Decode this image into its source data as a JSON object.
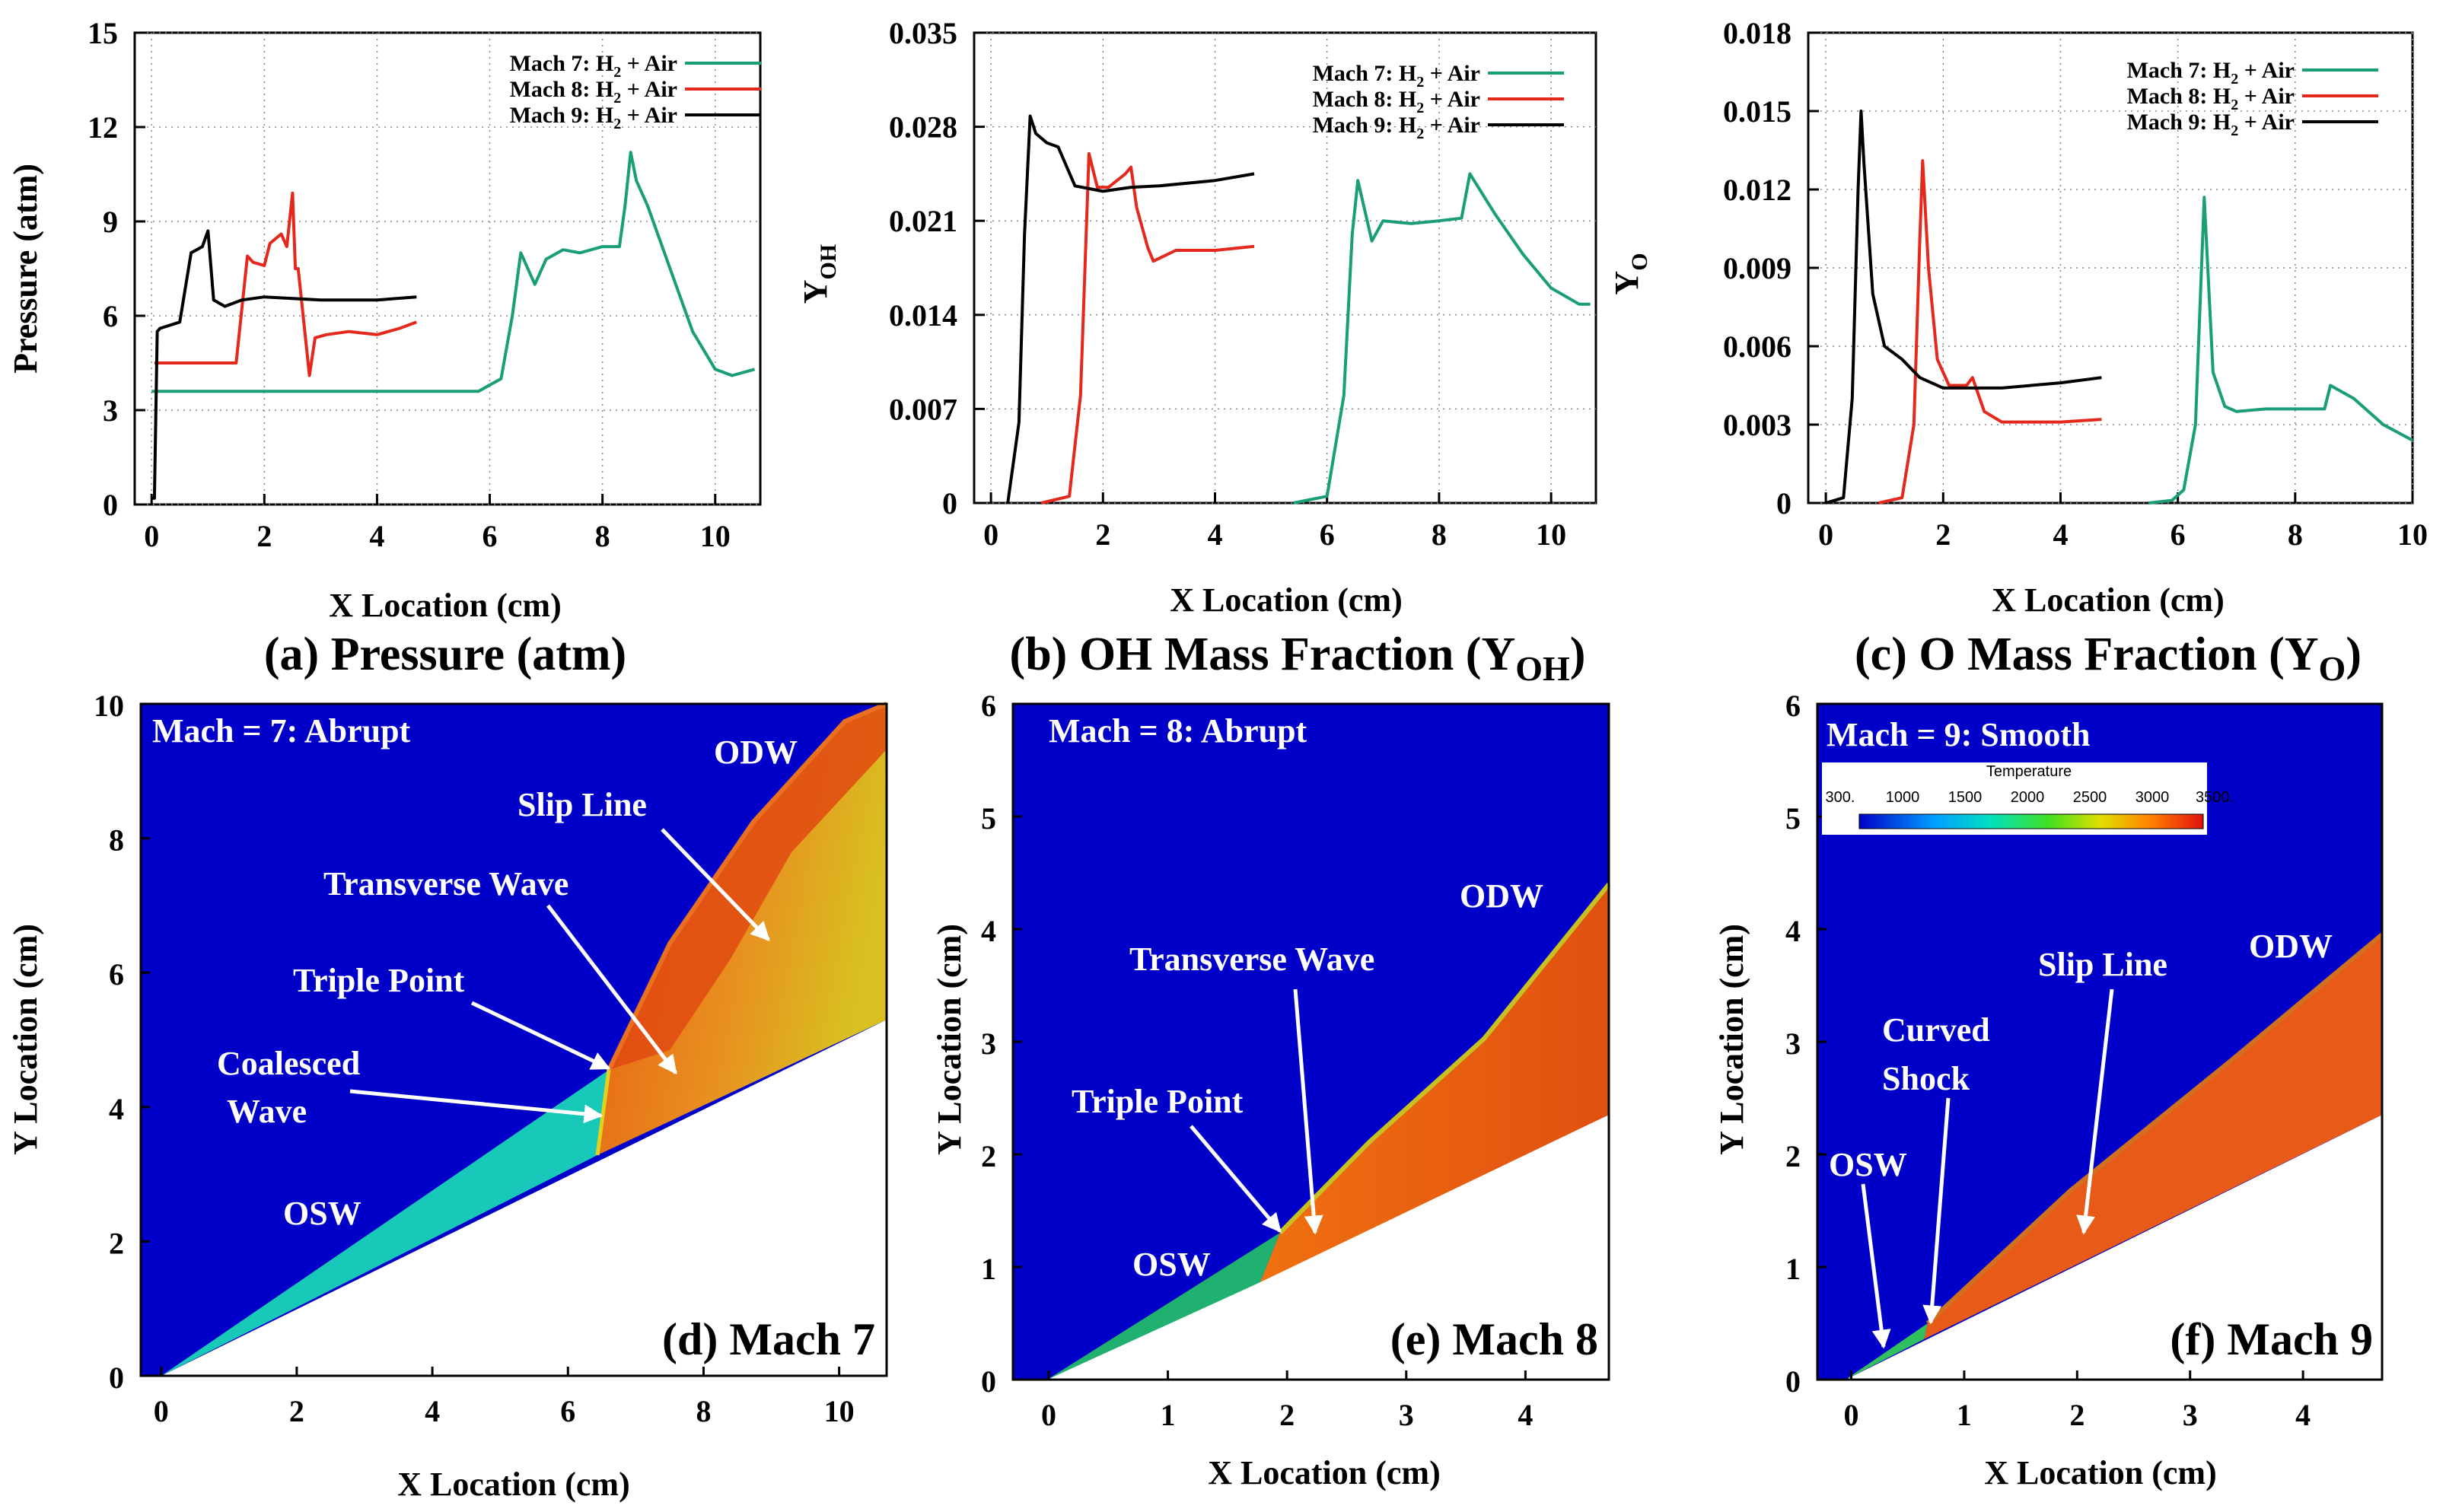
{
  "figure": {
    "line_plots": [
      {
        "id": "a",
        "caption": "(a) Pressure (atm)",
        "ylabel": "Pressure (atm)",
        "xlabel": "X Location (cm)",
        "xlim": [
          -0.3,
          10.8
        ],
        "ylim": [
          0,
          15
        ],
        "xticks": [
          0,
          2,
          4,
          6,
          8,
          10
        ],
        "yticks": [
          0,
          3,
          6,
          9,
          12,
          15
        ],
        "ytick_labels": [
          "0",
          "3",
          "6",
          "9",
          "12",
          "15"
        ]
      },
      {
        "id": "b",
        "caption": "(b) OH Mass Fraction (Y",
        "caption_sub": "OH",
        "caption_end": ")",
        "ylabel": "Y",
        "ylabel_sub": "OH",
        "xlabel": "X Location (cm)",
        "xlim": [
          -0.3,
          10.8
        ],
        "ylim": [
          0,
          0.035
        ],
        "xticks": [
          0,
          2,
          4,
          6,
          8,
          10
        ],
        "yticks": [
          0,
          0.007,
          0.014,
          0.021,
          0.028,
          0.035
        ],
        "ytick_labels": [
          "0",
          "0.007",
          "0.014",
          "0.021",
          "0.028",
          "0.035"
        ]
      },
      {
        "id": "c",
        "caption": "(c) O Mass Fraction (Y",
        "caption_sub": "O",
        "caption_end": ")",
        "ylabel": "Y",
        "ylabel_sub": "O",
        "xlabel": "X Location (cm)",
        "xlim": [
          -0.3,
          10
        ],
        "ylim": [
          0,
          0.018
        ],
        "xticks": [
          0,
          2,
          4,
          6,
          8,
          10
        ],
        "yticks": [
          0,
          0.003,
          0.006,
          0.009,
          0.012,
          0.015,
          0.018
        ],
        "ytick_labels": [
          "0",
          "0.003",
          "0.006",
          "0.009",
          "0.012",
          "0.015",
          "0.018"
        ]
      }
    ],
    "contour_panels": [
      {
        "id": "d",
        "label": "(d) Mach 7",
        "title": "Mach = 7: Abrupt",
        "xlabel": "X Location (cm)",
        "ylabel": "Y Location (cm)",
        "xlim": [
          -0.3,
          10.7
        ],
        "ylim": [
          0,
          10
        ],
        "xticks": [
          0,
          2,
          4,
          6,
          8,
          10
        ],
        "yticks": [
          0,
          2,
          4,
          6,
          8,
          10
        ],
        "annotations": [
          "ODW",
          "Slip Line",
          "Transverse Wave",
          "Triple Point",
          "Coalesced",
          "Wave",
          "OSW"
        ]
      },
      {
        "id": "e",
        "label": "(e) Mach 8",
        "title": "Mach = 8: Abrupt",
        "xlabel": "X Location (cm)",
        "ylabel": "Y Location (cm)",
        "xlim": [
          -0.3,
          4.7
        ],
        "ylim": [
          0,
          6
        ],
        "xticks": [
          0,
          1,
          2,
          3,
          4
        ],
        "yticks": [
          0,
          1,
          2,
          3,
          4,
          5,
          6
        ],
        "annotations": [
          "ODW",
          "Transverse Wave",
          "Triple Point",
          "OSW"
        ]
      },
      {
        "id": "f",
        "label": "(f) Mach 9",
        "title": "Mach = 9: Smooth",
        "xlabel": "X Location (cm)",
        "ylabel": "Y Location (cm)",
        "xlim": [
          -0.3,
          4.7
        ],
        "ylim": [
          0,
          6
        ],
        "xticks": [
          0,
          1,
          2,
          3,
          4
        ],
        "yticks": [
          0,
          1,
          2,
          3,
          4,
          5,
          6
        ],
        "annotations": [
          "ODW",
          "Slip Line",
          "Curved",
          "Shock",
          "OSW"
        ],
        "colorbar": {
          "title": "Temperature",
          "labels": [
            "300.",
            "1000",
            "1500",
            "2000",
            "2500",
            "3000",
            "3500."
          ]
        }
      }
    ]
  },
  "legend": [
    {
      "name": "Mach 7: H",
      "sub": "2",
      "rest": " + Air",
      "color": "#1a9e77"
    },
    {
      "name": "Mach 8: H",
      "sub": "2",
      "rest": " + Air",
      "color": "#e4281c"
    },
    {
      "name": "Mach 9: H",
      "sub": "2",
      "rest": " + Air",
      "color": "#000000"
    }
  ],
  "chart_data": [
    {
      "type": "line",
      "title": "(a) Pressure (atm)",
      "xlabel": "X Location (cm)",
      "ylabel": "Pressure (atm)",
      "xlim": [
        -0.3,
        10.8
      ],
      "ylim": [
        0,
        15
      ],
      "grid": true,
      "legend_position": "top-right",
      "series": [
        {
          "name": "Mach 7: H2 + Air",
          "color": "#1a9e77",
          "x": [
            0.0,
            5.8,
            6.2,
            6.4,
            6.55,
            6.8,
            7.0,
            7.3,
            7.6,
            8.0,
            8.3,
            8.4,
            8.5,
            8.6,
            8.8,
            9.2,
            9.6,
            10.0,
            10.3,
            10.7
          ],
          "y": [
            3.6,
            3.6,
            4.0,
            6.0,
            8.0,
            7.0,
            7.8,
            8.1,
            8.0,
            8.2,
            8.2,
            9.5,
            11.2,
            10.3,
            9.5,
            7.5,
            5.5,
            4.3,
            4.1,
            4.3
          ]
        },
        {
          "name": "Mach 8: H2 + Air",
          "color": "#e4281c",
          "x": [
            0.05,
            1.5,
            1.7,
            1.8,
            2.0,
            2.1,
            2.3,
            2.4,
            2.5,
            2.55,
            2.6,
            2.8,
            2.9,
            3.1,
            3.5,
            4.0,
            4.4,
            4.7
          ],
          "y": [
            4.5,
            4.5,
            7.9,
            7.7,
            7.6,
            8.3,
            8.6,
            8.2,
            9.9,
            7.5,
            7.5,
            4.1,
            5.3,
            5.4,
            5.5,
            5.4,
            5.6,
            5.8
          ]
        },
        {
          "name": "Mach 9: H2 + Air",
          "color": "#000000",
          "x": [
            0.0,
            0.05,
            0.1,
            0.15,
            0.5,
            0.7,
            0.9,
            1.0,
            1.1,
            1.3,
            1.6,
            2.0,
            3.0,
            4.0,
            4.7
          ],
          "y": [
            0.2,
            0.2,
            5.5,
            5.6,
            5.8,
            8.0,
            8.2,
            8.7,
            6.5,
            6.3,
            6.5,
            6.6,
            6.5,
            6.5,
            6.6
          ]
        }
      ]
    },
    {
      "type": "line",
      "title": "(b) OH Mass Fraction (YOH)",
      "xlabel": "X Location (cm)",
      "ylabel": "YOH",
      "xlim": [
        -0.3,
        10.8
      ],
      "ylim": [
        0,
        0.035
      ],
      "grid": true,
      "legend_position": "top-right",
      "series": [
        {
          "name": "Mach 7: H2 + Air",
          "color": "#1a9e77",
          "x": [
            5.4,
            6.0,
            6.3,
            6.45,
            6.55,
            6.8,
            7.0,
            7.5,
            8.0,
            8.4,
            8.55,
            8.7,
            9.0,
            9.5,
            10.0,
            10.5,
            10.7
          ],
          "y": [
            0.0,
            0.0005,
            0.008,
            0.02,
            0.024,
            0.0195,
            0.021,
            0.0208,
            0.021,
            0.0212,
            0.0245,
            0.0235,
            0.0215,
            0.0185,
            0.016,
            0.0148,
            0.0148
          ]
        },
        {
          "name": "Mach 8: H2 + Air",
          "color": "#e4281c",
          "x": [
            0.9,
            1.4,
            1.6,
            1.75,
            1.9,
            2.1,
            2.4,
            2.5,
            2.6,
            2.8,
            2.9,
            3.3,
            4.0,
            4.7
          ],
          "y": [
            0.0,
            0.0005,
            0.008,
            0.026,
            0.0235,
            0.0235,
            0.0245,
            0.025,
            0.022,
            0.019,
            0.018,
            0.0188,
            0.0188,
            0.0191
          ]
        },
        {
          "name": "Mach 9: H2 + Air",
          "color": "#000000",
          "x": [
            0.3,
            0.5,
            0.6,
            0.7,
            0.8,
            1.0,
            1.2,
            1.5,
            2.0,
            2.5,
            3.0,
            4.0,
            4.7
          ],
          "y": [
            0.0,
            0.006,
            0.02,
            0.0288,
            0.0275,
            0.0268,
            0.0265,
            0.0236,
            0.0232,
            0.0235,
            0.0236,
            0.024,
            0.0245
          ]
        }
      ]
    },
    {
      "type": "line",
      "title": "(c) O Mass Fraction (YO)",
      "xlabel": "X Location (cm)",
      "ylabel": "YO",
      "xlim": [
        -0.3,
        10
      ],
      "ylim": [
        0,
        0.018
      ],
      "grid": true,
      "legend_position": "top-right",
      "series": [
        {
          "name": "Mach 7: H2 + Air",
          "color": "#1a9e77",
          "x": [
            5.5,
            5.9,
            6.1,
            6.3,
            6.45,
            6.6,
            6.8,
            7.0,
            7.5,
            8.0,
            8.5,
            8.6,
            9.0,
            9.5,
            10.0
          ],
          "y": [
            0.0,
            0.0001,
            0.0005,
            0.003,
            0.0117,
            0.005,
            0.0037,
            0.0035,
            0.0036,
            0.0036,
            0.0036,
            0.0045,
            0.004,
            0.003,
            0.0024
          ]
        },
        {
          "name": "Mach 8: H2 + Air",
          "color": "#e4281c",
          "x": [
            0.9,
            1.3,
            1.5,
            1.6,
            1.65,
            1.75,
            1.9,
            2.1,
            2.4,
            2.5,
            2.7,
            3.0,
            4.0,
            4.7
          ],
          "y": [
            0.0,
            0.0002,
            0.003,
            0.01,
            0.0131,
            0.009,
            0.0055,
            0.0045,
            0.0045,
            0.0048,
            0.0035,
            0.0031,
            0.0031,
            0.0032
          ]
        },
        {
          "name": "Mach 9: H2 + Air",
          "color": "#000000",
          "x": [
            0.0,
            0.3,
            0.45,
            0.55,
            0.6,
            0.65,
            0.8,
            1.0,
            1.3,
            1.6,
            2.0,
            2.5,
            3.0,
            4.0,
            4.7
          ],
          "y": [
            0.0,
            0.0002,
            0.004,
            0.012,
            0.015,
            0.013,
            0.008,
            0.006,
            0.0055,
            0.0048,
            0.0044,
            0.0044,
            0.0044,
            0.0046,
            0.0048
          ]
        }
      ]
    },
    {
      "type": "heatmap",
      "title": "(d) Mach 7 — Mach = 7: Abrupt",
      "xlabel": "X Location (cm)",
      "ylabel": "Y Location (cm)",
      "xlim": [
        -0.3,
        10.7
      ],
      "ylim": [
        0,
        10
      ],
      "variable": "Temperature",
      "wedge_line": [
        [
          0,
          0
        ],
        [
          10.7,
          5.3
        ]
      ],
      "osw_line": [
        [
          0,
          0
        ],
        [
          6.6,
          4.55
        ]
      ],
      "odw_line": [
        [
          6.6,
          4.55
        ],
        [
          7.5,
          6.4
        ],
        [
          8.6,
          8.2
        ],
        [
          10.3,
          10.0
        ]
      ],
      "triple_point": [
        6.6,
        4.55
      ]
    },
    {
      "type": "heatmap",
      "title": "(e) Mach 8 — Mach = 8: Abrupt",
      "xlabel": "X Location (cm)",
      "ylabel": "Y Location (cm)",
      "xlim": [
        -0.3,
        4.7
      ],
      "ylim": [
        0,
        6
      ],
      "variable": "Temperature",
      "wedge_line": [
        [
          0,
          0
        ],
        [
          4.7,
          2.35
        ]
      ],
      "osw_line": [
        [
          0,
          0
        ],
        [
          1.8,
          1.3
        ]
      ],
      "odw_line": [
        [
          1.8,
          1.3
        ],
        [
          2.8,
          2.35
        ],
        [
          3.8,
          3.5
        ],
        [
          4.7,
          4.4
        ]
      ],
      "triple_point": [
        1.8,
        1.3
      ]
    },
    {
      "type": "heatmap",
      "title": "(f) Mach 9 — Mach = 9: Smooth",
      "xlabel": "X Location (cm)",
      "ylabel": "Y Location (cm)",
      "xlim": [
        -0.3,
        4.7
      ],
      "ylim": [
        0,
        6
      ],
      "variable": "Temperature",
      "colorbar_range": [
        300,
        3500
      ],
      "wedge_line": [
        [
          0,
          0
        ],
        [
          4.7,
          2.35
        ]
      ],
      "osw_line": [
        [
          0,
          0
        ],
        [
          0.7,
          0.5
        ]
      ],
      "odw_line": [
        [
          0.7,
          0.5
        ],
        [
          2.0,
          1.6
        ],
        [
          3.4,
          2.8
        ],
        [
          4.7,
          3.95
        ]
      ]
    }
  ]
}
